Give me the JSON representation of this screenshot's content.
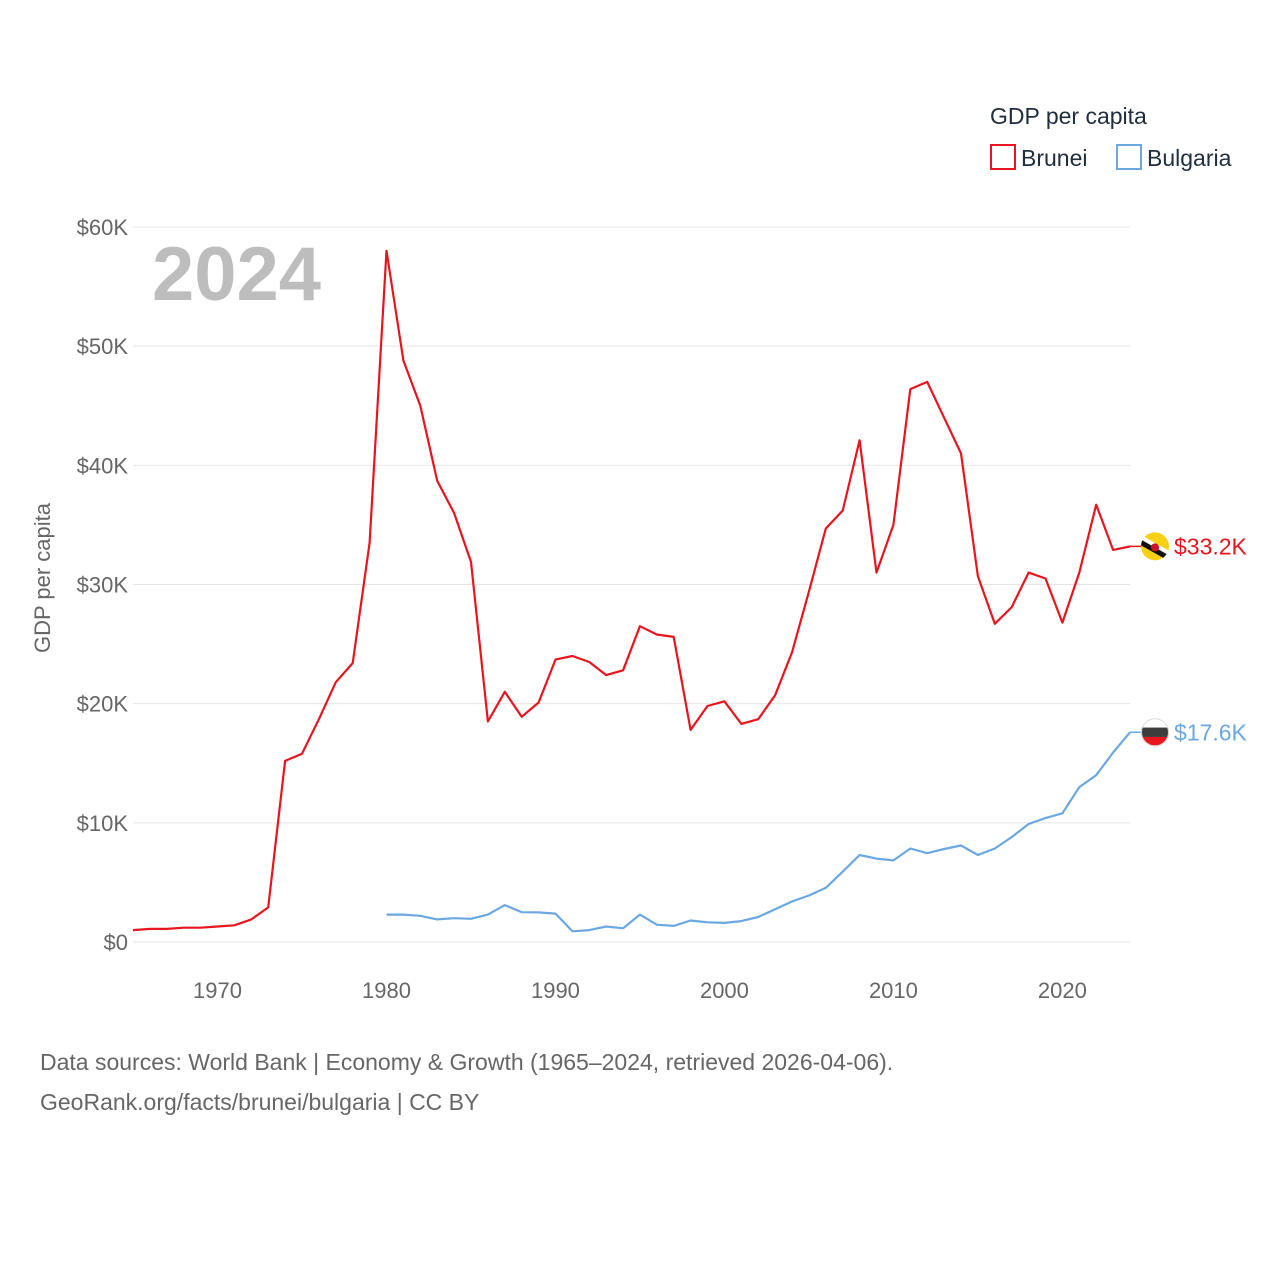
{
  "chart_data": {
    "type": "line",
    "year_label": "2024",
    "ylabel": "GDP per capita",
    "legend_title": "GDP per capita",
    "xlim": [
      1965,
      2024
    ],
    "ylim": [
      0,
      60000
    ],
    "x_ticks": [
      1970,
      1980,
      1990,
      2000,
      2010,
      2020
    ],
    "x_tick_labels": [
      "1970",
      "1980",
      "1990",
      "2000",
      "2010",
      "2020"
    ],
    "y_ticks": [
      0,
      10000,
      20000,
      30000,
      40000,
      50000,
      60000
    ],
    "y_tick_labels": [
      "$0",
      "$10K",
      "$20K",
      "$30K",
      "$40K",
      "$50K",
      "$60K"
    ],
    "series": [
      {
        "name": "Brunei",
        "color": "#e8141e",
        "end_label": "$33.2K",
        "flag_icon": "brunei-flag-icon",
        "points": [
          [
            1965,
            1000
          ],
          [
            1966,
            1100
          ],
          [
            1967,
            1100
          ],
          [
            1968,
            1200
          ],
          [
            1969,
            1200
          ],
          [
            1970,
            1300
          ],
          [
            1971,
            1400
          ],
          [
            1972,
            1900
          ],
          [
            1973,
            2900
          ],
          [
            1974,
            15200
          ],
          [
            1975,
            15800
          ],
          [
            1976,
            18700
          ],
          [
            1977,
            21800
          ],
          [
            1978,
            23400
          ],
          [
            1979,
            33500
          ],
          [
            1980,
            58000
          ],
          [
            1981,
            48800
          ],
          [
            1982,
            45000
          ],
          [
            1983,
            38700
          ],
          [
            1984,
            36000
          ],
          [
            1985,
            31900
          ],
          [
            1986,
            18500
          ],
          [
            1987,
            21000
          ],
          [
            1988,
            18900
          ],
          [
            1989,
            20100
          ],
          [
            1990,
            23700
          ],
          [
            1991,
            24000
          ],
          [
            1992,
            23500
          ],
          [
            1993,
            22400
          ],
          [
            1994,
            22800
          ],
          [
            1995,
            26500
          ],
          [
            1996,
            25800
          ],
          [
            1997,
            25600
          ],
          [
            1998,
            17800
          ],
          [
            1999,
            19800
          ],
          [
            2000,
            20200
          ],
          [
            2001,
            18300
          ],
          [
            2002,
            18700
          ],
          [
            2003,
            20700
          ],
          [
            2004,
            24300
          ],
          [
            2005,
            29400
          ],
          [
            2006,
            34700
          ],
          [
            2007,
            36200
          ],
          [
            2008,
            42100
          ],
          [
            2009,
            31000
          ],
          [
            2010,
            35000
          ],
          [
            2011,
            46400
          ],
          [
            2012,
            47000
          ],
          [
            2013,
            44000
          ],
          [
            2014,
            41000
          ],
          [
            2015,
            30700
          ],
          [
            2016,
            26700
          ],
          [
            2017,
            28100
          ],
          [
            2018,
            31000
          ],
          [
            2019,
            30500
          ],
          [
            2020,
            26800
          ],
          [
            2021,
            31000
          ],
          [
            2022,
            36700
          ],
          [
            2023,
            32900
          ],
          [
            2024,
            33200
          ]
        ]
      },
      {
        "name": "Bulgaria",
        "color": "#6ba8e0",
        "end_label": "$17.6K",
        "flag_icon": "bulgaria-flag-icon",
        "points": [
          [
            1980,
            2300
          ],
          [
            1981,
            2300
          ],
          [
            1982,
            2200
          ],
          [
            1983,
            1900
          ],
          [
            1984,
            2000
          ],
          [
            1985,
            1950
          ],
          [
            1986,
            2300
          ],
          [
            1987,
            3100
          ],
          [
            1988,
            2500
          ],
          [
            1989,
            2480
          ],
          [
            1990,
            2380
          ],
          [
            1991,
            900
          ],
          [
            1992,
            1000
          ],
          [
            1993,
            1300
          ],
          [
            1994,
            1150
          ],
          [
            1995,
            2300
          ],
          [
            1996,
            1450
          ],
          [
            1997,
            1350
          ],
          [
            1998,
            1800
          ],
          [
            1999,
            1650
          ],
          [
            2000,
            1600
          ],
          [
            2001,
            1750
          ],
          [
            2002,
            2100
          ],
          [
            2003,
            2750
          ],
          [
            2004,
            3400
          ],
          [
            2005,
            3900
          ],
          [
            2006,
            4550
          ],
          [
            2007,
            5900
          ],
          [
            2008,
            7300
          ],
          [
            2009,
            7000
          ],
          [
            2010,
            6850
          ],
          [
            2011,
            7850
          ],
          [
            2012,
            7450
          ],
          [
            2013,
            7800
          ],
          [
            2014,
            8100
          ],
          [
            2015,
            7300
          ],
          [
            2016,
            7850
          ],
          [
            2017,
            8800
          ],
          [
            2018,
            9900
          ],
          [
            2019,
            10400
          ],
          [
            2020,
            10800
          ],
          [
            2021,
            13000
          ],
          [
            2022,
            14000
          ],
          [
            2023,
            15900
          ],
          [
            2024,
            17600
          ]
        ]
      }
    ]
  },
  "source": {
    "line1": "Data sources: World Bank | Economy & Growth (1965–2024, retrieved 2026-04-06).",
    "line2": "GeoRank.org/facts/brunei/bulgaria | CC BY"
  }
}
